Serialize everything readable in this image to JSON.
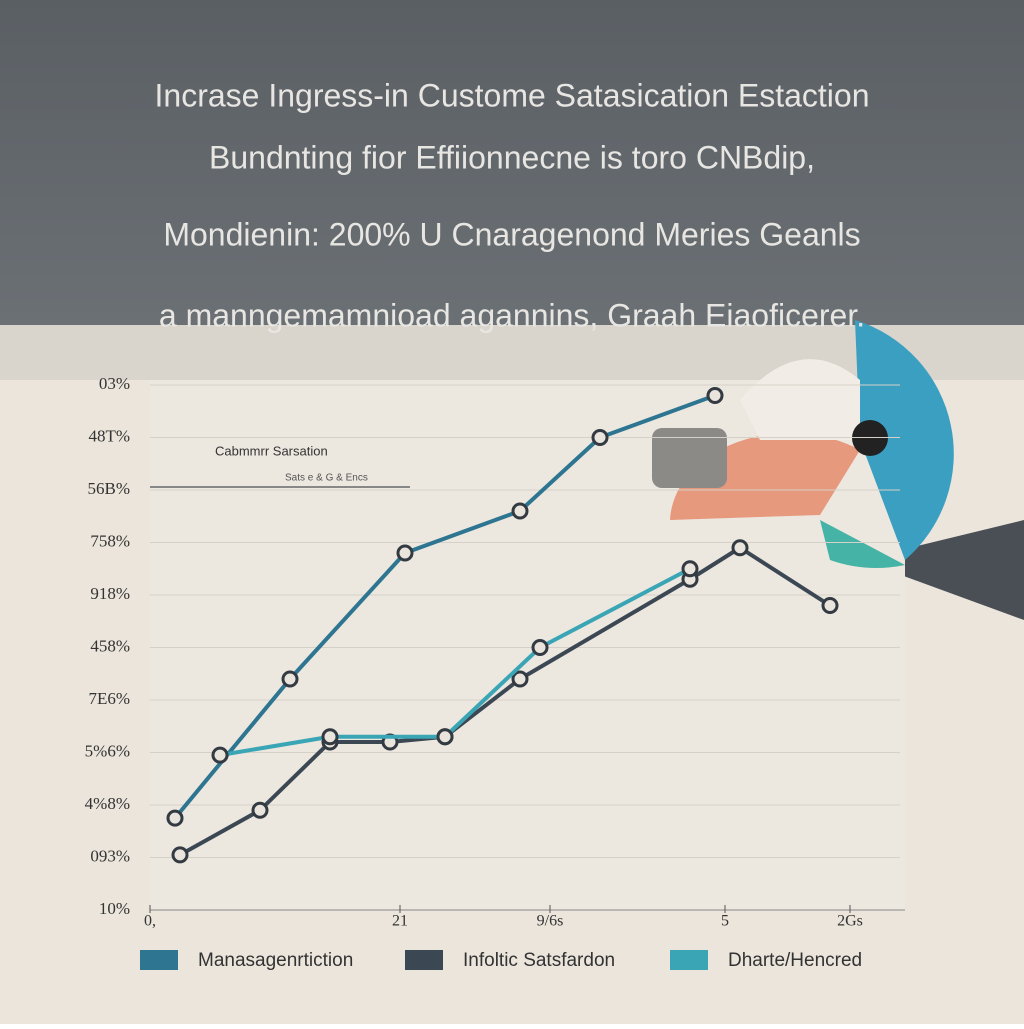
{
  "chart_data": {
    "type": "line",
    "title": [
      "Incrase Ingress-in Custome Satasication Estaction",
      "Bundnting fior  Effiionnecne is toro  CNBdip,",
      "Mondienin:  200% U Cnaragenond Meries  Geanls",
      "a manngemamnioad agannins, Graah Eiaoficerer."
    ],
    "annotations": [
      "Cabmmrr Sarsation",
      "Sats e & G & Encs"
    ],
    "xlim": [
      0,
      15
    ],
    "xticks": [
      {
        "value": 0,
        "label": "0,"
      },
      {
        "value": 5,
        "label": "21"
      },
      {
        "value": 8,
        "label": "9/6s"
      },
      {
        "value": 11.5,
        "label": "5"
      },
      {
        "value": 14,
        "label": "2Gs"
      }
    ],
    "ylim": [
      0,
      10
    ],
    "yticks": [
      {
        "value": 0,
        "label": "10%"
      },
      {
        "value": 1,
        "label": "093%"
      },
      {
        "value": 2,
        "label": "4%8%"
      },
      {
        "value": 3,
        "label": "5%6%"
      },
      {
        "value": 4,
        "label": "7E6%"
      },
      {
        "value": 5,
        "label": "458%"
      },
      {
        "value": 6,
        "label": "918%"
      },
      {
        "value": 7,
        "label": "758%"
      },
      {
        "value": 8,
        "label": "56B%"
      },
      {
        "value": 9,
        "label": "48T%"
      },
      {
        "value": 10,
        "label": "03%"
      }
    ],
    "grid": true,
    "series": [
      {
        "name": "Manasagenrtiction",
        "color": "#2d7590",
        "x": [
          0.5,
          2.8,
          5.1,
          7.4,
          9,
          11.3
        ],
        "values": [
          1.75,
          4.4,
          6.8,
          7.6,
          9,
          9.8
        ]
      },
      {
        "name": "Infoltic Satsfardon",
        "color": "#3b4752",
        "x": [
          0.6,
          2.2,
          3.6,
          4.8,
          5.9,
          7.4,
          10.8,
          11.8,
          13.6
        ],
        "values": [
          1.05,
          1.9,
          3.2,
          3.2,
          3.3,
          4.4,
          6.3,
          6.9,
          5.8
        ]
      },
      {
        "name": "Dharte/Hencred",
        "color": "#3aa5b5",
        "x": [
          1.4,
          3.6,
          5.9,
          7.8,
          10.8
        ],
        "values": [
          2.95,
          3.3,
          3.3,
          5,
          6.5
        ]
      }
    ]
  }
}
